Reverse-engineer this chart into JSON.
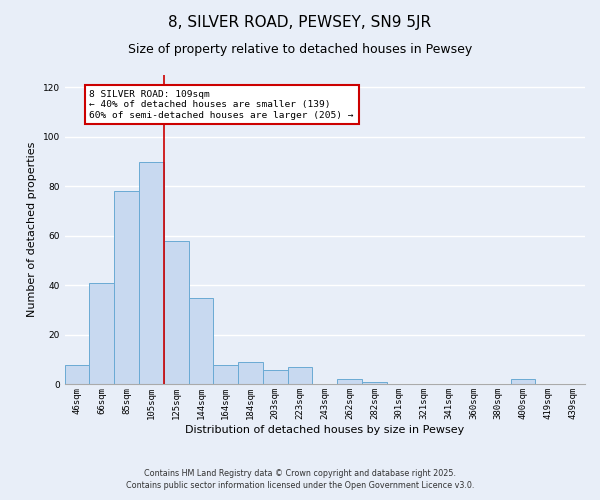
{
  "title": "8, SILVER ROAD, PEWSEY, SN9 5JR",
  "subtitle": "Size of property relative to detached houses in Pewsey",
  "xlabel": "Distribution of detached houses by size in Pewsey",
  "ylabel": "Number of detached properties",
  "categories": [
    "46sqm",
    "66sqm",
    "85sqm",
    "105sqm",
    "125sqm",
    "144sqm",
    "164sqm",
    "184sqm",
    "203sqm",
    "223sqm",
    "243sqm",
    "262sqm",
    "282sqm",
    "301sqm",
    "321sqm",
    "341sqm",
    "360sqm",
    "380sqm",
    "400sqm",
    "419sqm",
    "439sqm"
  ],
  "values": [
    8,
    41,
    78,
    90,
    58,
    35,
    8,
    9,
    6,
    7,
    0,
    2,
    1,
    0,
    0,
    0,
    0,
    0,
    2,
    0,
    0
  ],
  "bar_color": "#c8d9f0",
  "bar_edge_color": "#6aaad4",
  "ylim": [
    0,
    125
  ],
  "yticks": [
    0,
    20,
    40,
    60,
    80,
    100,
    120
  ],
  "annotation_title": "8 SILVER ROAD: 109sqm",
  "annotation_line1": "← 40% of detached houses are smaller (139)",
  "annotation_line2": "60% of semi-detached houses are larger (205) →",
  "annotation_box_color": "#ffffff",
  "annotation_box_edge": "#cc0000",
  "footer1": "Contains HM Land Registry data © Crown copyright and database right 2025.",
  "footer2": "Contains public sector information licensed under the Open Government Licence v3.0.",
  "bg_color": "#e8eef8",
  "plot_bg_color": "#e8eef8",
  "grid_color": "#ffffff",
  "title_fontsize": 11,
  "subtitle_fontsize": 9,
  "label_fontsize": 8,
  "tick_fontsize": 6.5,
  "footer_fontsize": 5.8,
  "red_line_x": 3.5
}
